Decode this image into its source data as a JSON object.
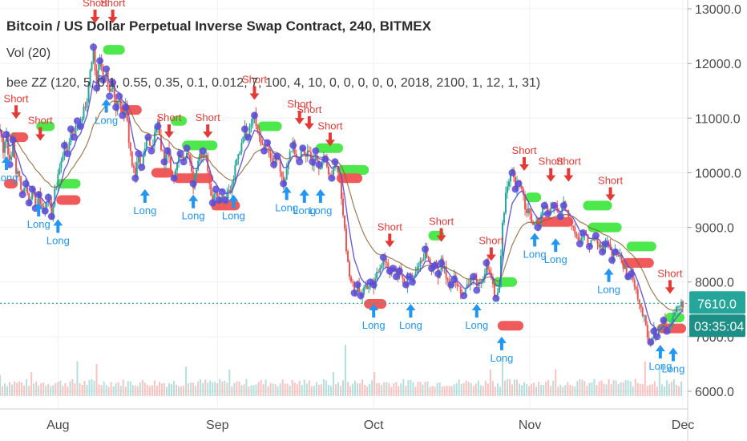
{
  "chart_data": {
    "type": "candlestick",
    "title": "Bitcoin / US Dollar Perpetual Inverse Swap Contract, 240, BITMEX",
    "indicators": [
      "Vol (20)",
      "bee ZZ (120, 5, 0.1, 0.55, 0.35, 0.1, 0.012, 7, 100, 4, 10, 0, 0, 0, 0, 0, 2018, 2100, 1, 12, 1, 31)"
    ],
    "x_labels": [
      "Aug",
      "Sep",
      "Oct",
      "Nov",
      "Dec"
    ],
    "y_ticks": [
      "6000.0",
      "7000.0",
      "8000.0",
      "9000.0",
      "10000.0",
      "11000.0",
      "12000.0",
      "13000.0"
    ],
    "ylim": [
      6000,
      13000
    ],
    "last_price": "7610.0",
    "countdown": "03:35:04",
    "colors": {
      "up": "#26a69a",
      "down": "#ef5350",
      "ema": "#5b4bd9",
      "trend": "#8b5a2b",
      "long": "#2196f3",
      "short": "#e53935",
      "price_label": "#26a69a",
      "countdown_bg": "#1e8f86",
      "zone_green": "#4ce84c",
      "zone_red": "#f05a5a"
    },
    "price_path": [
      [
        0,
        10800
      ],
      [
        4,
        10350
      ],
      [
        8,
        10700
      ],
      [
        12,
        10150
      ],
      [
        16,
        10600
      ],
      [
        20,
        10050
      ],
      [
        24,
        9900
      ],
      [
        28,
        9600
      ],
      [
        32,
        9800
      ],
      [
        36,
        9450
      ],
      [
        40,
        9700
      ],
      [
        44,
        9350
      ],
      [
        48,
        9600
      ],
      [
        52,
        9400
      ],
      [
        56,
        9300
      ],
      [
        60,
        9550
      ],
      [
        64,
        9200
      ],
      [
        68,
        9650
      ],
      [
        72,
        9950
      ],
      [
        76,
        10150
      ],
      [
        80,
        10500
      ],
      [
        84,
        10350
      ],
      [
        88,
        10800
      ],
      [
        92,
        10650
      ],
      [
        96,
        10950
      ],
      [
        100,
        10850
      ],
      [
        104,
        11200
      ],
      [
        108,
        11350
      ],
      [
        112,
        11900
      ],
      [
        116,
        12300
      ],
      [
        120,
        11550
      ],
      [
        124,
        12050
      ],
      [
        128,
        11700
      ],
      [
        132,
        11900
      ],
      [
        136,
        11400
      ],
      [
        140,
        11650
      ],
      [
        144,
        11200
      ],
      [
        148,
        11400
      ],
      [
        152,
        11050
      ],
      [
        156,
        11200
      ],
      [
        160,
        10600
      ],
      [
        164,
        10150
      ],
      [
        168,
        9900
      ],
      [
        172,
        10350
      ],
      [
        176,
        10100
      ],
      [
        180,
        10500
      ],
      [
        184,
        10650
      ],
      [
        188,
        10400
      ],
      [
        192,
        10700
      ],
      [
        196,
        10850
      ],
      [
        200,
        10500
      ],
      [
        204,
        10200
      ],
      [
        208,
        10400
      ],
      [
        212,
        10100
      ],
      [
        216,
        9900
      ],
      [
        220,
        10200
      ],
      [
        224,
        10350
      ],
      [
        228,
        10200
      ],
      [
        232,
        10450
      ],
      [
        236,
        10100
      ],
      [
        240,
        9800
      ],
      [
        244,
        10050
      ],
      [
        248,
        10300
      ],
      [
        252,
        10400
      ],
      [
        256,
        10250
      ],
      [
        260,
        9800
      ],
      [
        264,
        9450
      ],
      [
        268,
        9700
      ],
      [
        272,
        9500
      ],
      [
        276,
        9650
      ],
      [
        280,
        9500
      ],
      [
        284,
        9650
      ],
      [
        288,
        9700
      ],
      [
        292,
        10100
      ],
      [
        296,
        10400
      ],
      [
        300,
        10500
      ],
      [
        304,
        10800
      ],
      [
        308,
        10650
      ],
      [
        312,
        10900
      ],
      [
        316,
        11050
      ],
      [
        320,
        10700
      ],
      [
        324,
        10600
      ],
      [
        328,
        10400
      ],
      [
        332,
        10550
      ],
      [
        336,
        10250
      ],
      [
        340,
        10150
      ],
      [
        344,
        10300
      ],
      [
        348,
        10100
      ],
      [
        352,
        9800
      ],
      [
        356,
        10100
      ],
      [
        360,
        10400
      ],
      [
        364,
        10500
      ],
      [
        368,
        10300
      ],
      [
        372,
        10200
      ],
      [
        376,
        10450
      ],
      [
        380,
        10350
      ],
      [
        384,
        10300
      ],
      [
        388,
        10200
      ],
      [
        392,
        10400
      ],
      [
        396,
        10150
      ],
      [
        400,
        10200
      ],
      [
        404,
        10250
      ],
      [
        408,
        10050
      ],
      [
        412,
        9900
      ],
      [
        416,
        10200
      ],
      [
        420,
        10100
      ],
      [
        424,
        9600
      ],
      [
        428,
        8900
      ],
      [
        432,
        8300
      ],
      [
        436,
        8050
      ],
      [
        440,
        7800
      ],
      [
        444,
        7950
      ],
      [
        448,
        7750
      ],
      [
        452,
        7850
      ],
      [
        456,
        7900
      ],
      [
        460,
        8000
      ],
      [
        464,
        7950
      ],
      [
        468,
        8100
      ],
      [
        472,
        8300
      ],
      [
        476,
        8450
      ],
      [
        480,
        8350
      ],
      [
        484,
        8200
      ],
      [
        488,
        8250
      ],
      [
        492,
        8100
      ],
      [
        496,
        8200
      ],
      [
        500,
        8050
      ],
      [
        504,
        7950
      ],
      [
        508,
        8100
      ],
      [
        512,
        8000
      ],
      [
        516,
        8150
      ],
      [
        520,
        8350
      ],
      [
        524,
        8400
      ],
      [
        528,
        8600
      ],
      [
        532,
        8400
      ],
      [
        536,
        8250
      ],
      [
        540,
        8300
      ],
      [
        544,
        8150
      ],
      [
        548,
        8350
      ],
      [
        552,
        8200
      ],
      [
        556,
        8050
      ],
      [
        560,
        7950
      ],
      [
        564,
        8050
      ],
      [
        568,
        7900
      ],
      [
        572,
        7850
      ],
      [
        576,
        7750
      ],
      [
        580,
        7900
      ],
      [
        584,
        8050
      ],
      [
        588,
        8100
      ],
      [
        592,
        7850
      ],
      [
        596,
        8050
      ],
      [
        600,
        8100
      ],
      [
        604,
        8350
      ],
      [
        608,
        8200
      ],
      [
        612,
        7900
      ],
      [
        616,
        7700
      ],
      [
        620,
        7900
      ],
      [
        624,
        9100
      ],
      [
        628,
        9600
      ],
      [
        632,
        9800
      ],
      [
        636,
        10000
      ],
      [
        640,
        9700
      ],
      [
        644,
        9800
      ],
      [
        648,
        9750
      ],
      [
        652,
        9400
      ],
      [
        656,
        9300
      ],
      [
        660,
        9100
      ],
      [
        664,
        9050
      ],
      [
        668,
        9000
      ],
      [
        672,
        9200
      ],
      [
        676,
        9400
      ],
      [
        680,
        9250
      ],
      [
        684,
        9300
      ],
      [
        688,
        9400
      ],
      [
        692,
        9350
      ],
      [
        696,
        9200
      ],
      [
        700,
        9400
      ],
      [
        704,
        9250
      ],
      [
        708,
        9100
      ],
      [
        712,
        9050
      ],
      [
        716,
        8850
      ],
      [
        720,
        8700
      ],
      [
        724,
        8900
      ],
      [
        728,
        8800
      ],
      [
        732,
        8650
      ],
      [
        736,
        8800
      ],
      [
        740,
        8850
      ],
      [
        744,
        8700
      ],
      [
        748,
        8550
      ],
      [
        752,
        8700
      ],
      [
        756,
        8650
      ],
      [
        760,
        8400
      ],
      [
        764,
        8550
      ],
      [
        768,
        8500
      ],
      [
        772,
        8400
      ],
      [
        776,
        8200
      ],
      [
        780,
        8100
      ],
      [
        784,
        8150
      ],
      [
        788,
        8000
      ],
      [
        792,
        7750
      ],
      [
        796,
        7500
      ],
      [
        800,
        7300
      ],
      [
        804,
        7000
      ],
      [
        808,
        6900
      ],
      [
        812,
        7100
      ],
      [
        816,
        7000
      ],
      [
        820,
        7150
      ],
      [
        824,
        7300
      ],
      [
        828,
        7100
      ],
      [
        832,
        7250
      ],
      [
        836,
        7400
      ],
      [
        840,
        7500
      ],
      [
        844,
        7550
      ],
      [
        848,
        7610
      ]
    ],
    "volume_peaks": [
      [
        0,
        6300
      ],
      [
        40,
        6350
      ],
      [
        95,
        6550
      ],
      [
        120,
        6500
      ],
      [
        232,
        6450
      ],
      [
        285,
        6400
      ],
      [
        415,
        6350
      ],
      [
        428,
        6850
      ],
      [
        465,
        6350
      ],
      [
        610,
        6400
      ],
      [
        623,
        6600
      ],
      [
        690,
        6400
      ],
      [
        800,
        6550
      ],
      [
        820,
        6450
      ]
    ],
    "signals": [
      {
        "label": "Short",
        "dir": "short",
        "x": 20,
        "price": 11000
      },
      {
        "label": "Short",
        "dir": "short",
        "x": 50,
        "price": 10600
      },
      {
        "label": "Long",
        "dir": "long",
        "x": 8,
        "price": 10300
      },
      {
        "label": "Long",
        "dir": "long",
        "x": 48,
        "price": 9450
      },
      {
        "label": "Long",
        "dir": "long",
        "x": 72,
        "price": 9150
      },
      {
        "label": "Short",
        "dir": "short",
        "x": 118,
        "price": 12750
      },
      {
        "label": "Short",
        "dir": "short",
        "x": 140,
        "price": 12750
      },
      {
        "label": "Long",
        "dir": "long",
        "x": 132,
        "price": 11350
      },
      {
        "label": "Short",
        "dir": "short",
        "x": 210,
        "price": 10650
      },
      {
        "label": "Short",
        "dir": "short",
        "x": 258,
        "price": 10650
      },
      {
        "label": "Long",
        "dir": "long",
        "x": 180,
        "price": 9700
      },
      {
        "label": "Long",
        "dir": "long",
        "x": 240,
        "price": 9600
      },
      {
        "label": "Long",
        "dir": "long",
        "x": 290,
        "price": 9600
      },
      {
        "label": "Short",
        "dir": "short",
        "x": 316,
        "price": 11350
      },
      {
        "label": "Short",
        "dir": "short",
        "x": 372,
        "price": 10900
      },
      {
        "label": "Short",
        "dir": "short",
        "x": 384,
        "price": 10800
      },
      {
        "label": "Short",
        "dir": "short",
        "x": 410,
        "price": 10500
      },
      {
        "label": "Long",
        "dir": "long",
        "x": 356,
        "price": 9750
      },
      {
        "label": "Long",
        "dir": "long",
        "x": 378,
        "price": 9700
      },
      {
        "label": "Long",
        "dir": "long",
        "x": 398,
        "price": 9700
      },
      {
        "label": "Short",
        "dir": "short",
        "x": 484,
        "price": 8650
      },
      {
        "label": "Short",
        "dir": "short",
        "x": 548,
        "price": 8750
      },
      {
        "label": "Long",
        "dir": "long",
        "x": 464,
        "price": 7600
      },
      {
        "label": "Long",
        "dir": "long",
        "x": 510,
        "price": 7600
      },
      {
        "label": "Short",
        "dir": "short",
        "x": 610,
        "price": 8400
      },
      {
        "label": "Long",
        "dir": "long",
        "x": 592,
        "price": 7600
      },
      {
        "label": "Long",
        "dir": "long",
        "x": 623,
        "price": 7000
      },
      {
        "label": "Short",
        "dir": "short",
        "x": 651,
        "price": 10050
      },
      {
        "label": "Short",
        "dir": "short",
        "x": 684,
        "price": 9850
      },
      {
        "label": "Short",
        "dir": "short",
        "x": 706,
        "price": 9850
      },
      {
        "label": "Short",
        "dir": "short",
        "x": 758,
        "price": 9500
      },
      {
        "label": "Long",
        "dir": "long",
        "x": 664,
        "price": 8900
      },
      {
        "label": "Long",
        "dir": "long",
        "x": 690,
        "price": 8800
      },
      {
        "label": "Long",
        "dir": "long",
        "x": 756,
        "price": 8250
      },
      {
        "label": "Short",
        "dir": "short",
        "x": 832,
        "price": 7800
      },
      {
        "label": "Long",
        "dir": "long",
        "x": 820,
        "price": 6850
      },
      {
        "label": "Long",
        "dir": "long",
        "x": 836,
        "price": 6800
      }
    ],
    "zones": [
      {
        "color": "green",
        "x1": 45,
        "x2": 68,
        "price": 10850
      },
      {
        "color": "red",
        "x1": 12,
        "x2": 35,
        "price": 10650
      },
      {
        "color": "red",
        "x1": 5,
        "x2": 22,
        "price": 9800
      },
      {
        "color": "green",
        "x1": 70,
        "x2": 100,
        "price": 9800
      },
      {
        "color": "red",
        "x1": 70,
        "x2": 100,
        "price": 9500
      },
      {
        "color": "green",
        "x1": 128,
        "x2": 155,
        "price": 12250
      },
      {
        "color": "red",
        "x1": 150,
        "x2": 176,
        "price": 11150
      },
      {
        "color": "green",
        "x1": 212,
        "x2": 232,
        "price": 10950
      },
      {
        "color": "green",
        "x1": 226,
        "x2": 270,
        "price": 10500
      },
      {
        "color": "red",
        "x1": 188,
        "x2": 215,
        "price": 10000
      },
      {
        "color": "red",
        "x1": 215,
        "x2": 265,
        "price": 9900
      },
      {
        "color": "red",
        "x1": 262,
        "x2": 298,
        "price": 9400
      },
      {
        "color": "green",
        "x1": 320,
        "x2": 350,
        "price": 10850
      },
      {
        "color": "green",
        "x1": 392,
        "x2": 426,
        "price": 10450
      },
      {
        "color": "green",
        "x1": 418,
        "x2": 458,
        "price": 10050
      },
      {
        "color": "red",
        "x1": 418,
        "x2": 450,
        "price": 9900
      },
      {
        "color": "red",
        "x1": 452,
        "x2": 480,
        "price": 7600
      },
      {
        "color": "green",
        "x1": 532,
        "x2": 552,
        "price": 8850
      },
      {
        "color": "green",
        "x1": 612,
        "x2": 642,
        "price": 8000
      },
      {
        "color": "red",
        "x1": 618,
        "x2": 650,
        "price": 7200
      },
      {
        "color": "green",
        "x1": 652,
        "x2": 672,
        "price": 9550
      },
      {
        "color": "red",
        "x1": 666,
        "x2": 712,
        "price": 9100
      },
      {
        "color": "green",
        "x1": 724,
        "x2": 760,
        "price": 9400
      },
      {
        "color": "green",
        "x1": 730,
        "x2": 772,
        "price": 9000
      },
      {
        "color": "green",
        "x1": 778,
        "x2": 815,
        "price": 8650
      },
      {
        "color": "red",
        "x1": 772,
        "x2": 812,
        "price": 8350
      },
      {
        "color": "red",
        "x1": 816,
        "x2": 852,
        "price": 7150
      },
      {
        "color": "green",
        "x1": 826,
        "x2": 850,
        "price": 7350
      }
    ]
  }
}
